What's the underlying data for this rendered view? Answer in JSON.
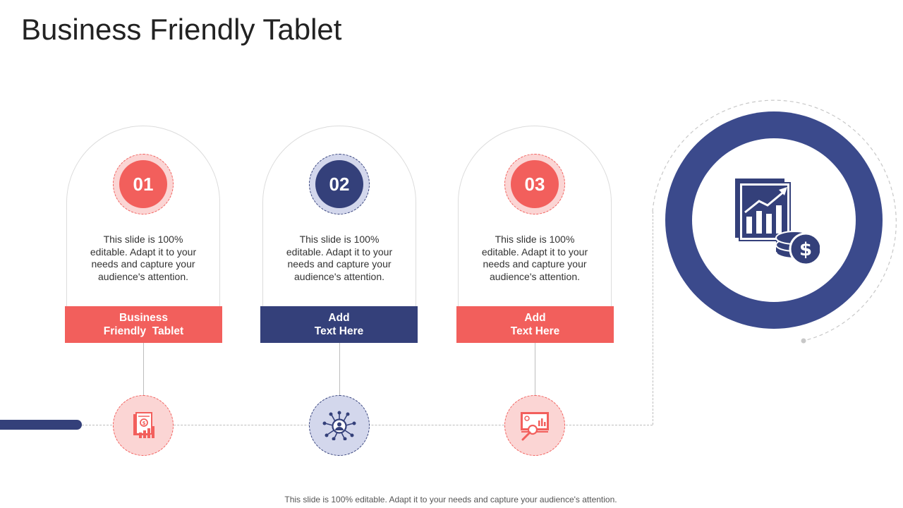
{
  "title": "Business Friendly Tablet",
  "colors": {
    "coral": "#f25f5c",
    "coral_light": "#fbd5d4",
    "navy": "#34407a",
    "navy_light": "#d3d7ec",
    "ring_navy": "#3b4a8c",
    "line_gray": "#bdbdbd"
  },
  "steps": [
    {
      "number": "01",
      "description": "This slide is 100% editable. Adapt it to your needs and capture your audience's attention.",
      "label_line1": "Business",
      "label_line2": "Friendly  Tablet",
      "color": "coral",
      "icon": "financial-report-icon"
    },
    {
      "number": "02",
      "description": "This slide is 100% editable. Adapt it to your needs and capture your audience's attention.",
      "label_line1": "Add",
      "label_line2": "Text Here",
      "color": "navy",
      "icon": "user-network-icon"
    },
    {
      "number": "03",
      "description": "This slide is 100% editable. Adapt it to your needs and capture your audience's attention.",
      "label_line1": "Add",
      "label_line2": "Text Here",
      "color": "coral",
      "icon": "presentation-analysis-icon"
    }
  ],
  "hero_icon": "finance-chart-coins-icon",
  "footer": "This slide is 100% editable. Adapt it to your needs and capture your audience's attention."
}
